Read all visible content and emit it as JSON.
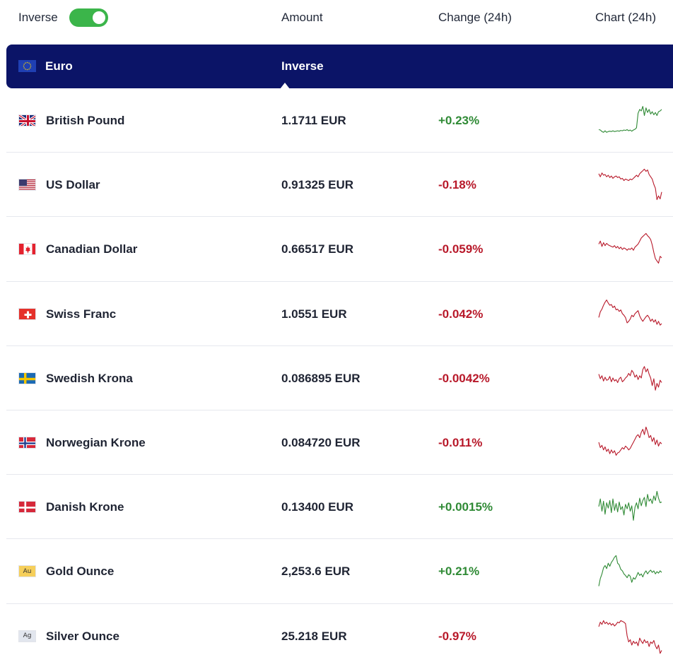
{
  "header": {
    "inverse_label": "Inverse",
    "inverse_on": true,
    "col_amount": "Amount",
    "col_change": "Change (24h)",
    "col_chart": "Chart (24h)"
  },
  "base": {
    "name": "Euro",
    "flag": "eu-flag-icon",
    "mode_label": "Inverse"
  },
  "colors": {
    "up": "#2f8a35",
    "down": "#b8192a",
    "banner": "#0b1467",
    "toggle": "#3bb54a"
  },
  "rows": [
    {
      "name": "British Pound",
      "flag": "gb-flag-icon",
      "amount": "1.1711 EUR",
      "change": "+0.23%",
      "dir": "up",
      "spark": [
        0.25,
        0.24,
        0.2,
        0.18,
        0.22,
        0.18,
        0.2,
        0.21,
        0.2,
        0.22,
        0.2,
        0.21,
        0.22,
        0.21,
        0.23,
        0.22,
        0.24,
        0.23,
        0.25,
        0.22,
        0.24,
        0.21,
        0.24,
        0.26,
        0.3,
        0.68,
        0.78,
        0.74,
        0.86,
        0.62,
        0.82,
        0.7,
        0.78,
        0.66,
        0.72,
        0.64,
        0.7,
        0.62,
        0.72,
        0.74,
        0.78
      ]
    },
    {
      "name": "US Dollar",
      "flag": "us-flag-icon",
      "amount": "0.91325 EUR",
      "change": "-0.18%",
      "dir": "down",
      "spark": [
        0.78,
        0.7,
        0.8,
        0.74,
        0.76,
        0.7,
        0.74,
        0.68,
        0.72,
        0.66,
        0.7,
        0.72,
        0.68,
        0.7,
        0.64,
        0.66,
        0.6,
        0.64,
        0.62,
        0.6,
        0.64,
        0.62,
        0.66,
        0.7,
        0.74,
        0.7,
        0.78,
        0.82,
        0.86,
        0.9,
        0.84,
        0.88,
        0.76,
        0.7,
        0.64,
        0.5,
        0.4,
        0.1,
        0.2,
        0.12,
        0.3
      ]
    },
    {
      "name": "Canadian Dollar",
      "flag": "ca-flag-icon",
      "amount": "0.66517 EUR",
      "change": "-0.059%",
      "dir": "down",
      "spark": [
        0.62,
        0.7,
        0.56,
        0.66,
        0.58,
        0.64,
        0.6,
        0.58,
        0.56,
        0.54,
        0.58,
        0.52,
        0.56,
        0.5,
        0.54,
        0.48,
        0.52,
        0.5,
        0.46,
        0.5,
        0.48,
        0.52,
        0.46,
        0.54,
        0.58,
        0.62,
        0.7,
        0.78,
        0.82,
        0.86,
        0.9,
        0.84,
        0.8,
        0.74,
        0.6,
        0.4,
        0.24,
        0.18,
        0.12,
        0.3,
        0.26
      ]
    },
    {
      "name": "Swiss Franc",
      "flag": "ch-flag-icon",
      "amount": "1.0551 EUR",
      "change": "-0.042%",
      "dir": "down",
      "spark": [
        0.4,
        0.55,
        0.62,
        0.72,
        0.8,
        0.86,
        0.78,
        0.72,
        0.74,
        0.66,
        0.7,
        0.6,
        0.62,
        0.56,
        0.6,
        0.5,
        0.46,
        0.4,
        0.26,
        0.3,
        0.36,
        0.46,
        0.42,
        0.5,
        0.54,
        0.58,
        0.44,
        0.36,
        0.3,
        0.36,
        0.42,
        0.46,
        0.4,
        0.3,
        0.36,
        0.28,
        0.34,
        0.22,
        0.3,
        0.2,
        0.24
      ]
    },
    {
      "name": "Swedish Krona",
      "flag": "se-flag-icon",
      "amount": "0.086895 EUR",
      "change": "-0.0042%",
      "dir": "down",
      "spark": [
        0.6,
        0.48,
        0.56,
        0.42,
        0.52,
        0.44,
        0.46,
        0.54,
        0.4,
        0.5,
        0.42,
        0.46,
        0.38,
        0.48,
        0.52,
        0.4,
        0.44,
        0.5,
        0.54,
        0.62,
        0.56,
        0.7,
        0.64,
        0.52,
        0.58,
        0.46,
        0.56,
        0.5,
        0.72,
        0.8,
        0.66,
        0.74,
        0.6,
        0.5,
        0.3,
        0.48,
        0.18,
        0.36,
        0.26,
        0.44,
        0.38
      ]
    },
    {
      "name": "Norwegian Krone",
      "flag": "no-flag-icon",
      "amount": "0.084720 EUR",
      "change": "-0.011%",
      "dir": "down",
      "spark": [
        0.5,
        0.36,
        0.42,
        0.3,
        0.38,
        0.26,
        0.32,
        0.2,
        0.3,
        0.22,
        0.28,
        0.16,
        0.22,
        0.24,
        0.3,
        0.36,
        0.32,
        0.4,
        0.36,
        0.3,
        0.34,
        0.42,
        0.5,
        0.58,
        0.66,
        0.7,
        0.62,
        0.76,
        0.84,
        0.7,
        0.9,
        0.78,
        0.62,
        0.68,
        0.52,
        0.62,
        0.44,
        0.56,
        0.4,
        0.5,
        0.46
      ]
    },
    {
      "name": "Danish Krone",
      "flag": "dk-flag-icon",
      "amount": "0.13400 EUR",
      "change": "+0.0015%",
      "dir": "up",
      "spark": [
        0.5,
        0.7,
        0.38,
        0.64,
        0.3,
        0.6,
        0.46,
        0.66,
        0.34,
        0.7,
        0.4,
        0.58,
        0.36,
        0.62,
        0.42,
        0.5,
        0.28,
        0.56,
        0.44,
        0.6,
        0.38,
        0.52,
        0.14,
        0.48,
        0.6,
        0.44,
        0.72,
        0.52,
        0.66,
        0.74,
        0.5,
        0.82,
        0.64,
        0.7,
        0.58,
        0.78,
        0.66,
        0.9,
        0.72,
        0.6,
        0.62
      ]
    },
    {
      "name": "Gold Ounce",
      "flag": "au-metal-icon",
      "metal": "Au",
      "amount": "2,253.6 EUR",
      "change": "+0.21%",
      "dir": "up",
      "spark": [
        0.1,
        0.3,
        0.42,
        0.58,
        0.64,
        0.56,
        0.7,
        0.62,
        0.72,
        0.78,
        0.86,
        0.9,
        0.7,
        0.66,
        0.54,
        0.5,
        0.42,
        0.38,
        0.32,
        0.4,
        0.36,
        0.2,
        0.32,
        0.28,
        0.36,
        0.46,
        0.38,
        0.42,
        0.34,
        0.44,
        0.5,
        0.42,
        0.48,
        0.52,
        0.46,
        0.5,
        0.42,
        0.48,
        0.44,
        0.5,
        0.46
      ]
    },
    {
      "name": "Silver Ounce",
      "flag": "ag-metal-icon",
      "metal": "Ag",
      "amount": "25.218 EUR",
      "change": "-0.97%",
      "dir": "down",
      "spark": [
        0.74,
        0.86,
        0.8,
        0.9,
        0.82,
        0.86,
        0.8,
        0.84,
        0.78,
        0.82,
        0.76,
        0.8,
        0.86,
        0.84,
        0.9,
        0.88,
        0.86,
        0.82,
        0.5,
        0.34,
        0.4,
        0.26,
        0.36,
        0.3,
        0.34,
        0.24,
        0.44,
        0.36,
        0.3,
        0.4,
        0.32,
        0.36,
        0.22,
        0.34,
        0.3,
        0.38,
        0.24,
        0.16,
        0.26,
        0.04,
        0.12
      ]
    }
  ]
}
